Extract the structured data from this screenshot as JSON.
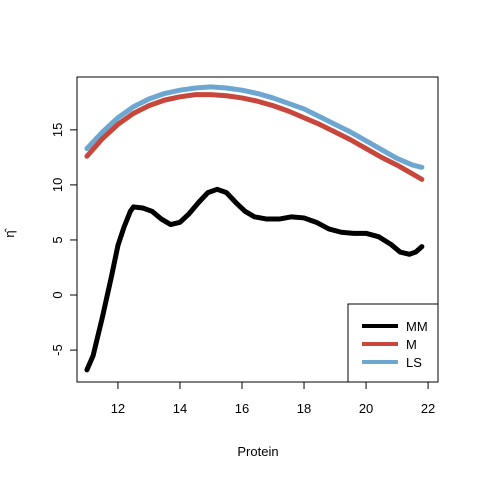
{
  "chart_data": {
    "type": "line",
    "title": "",
    "xlabel": "Protein",
    "ylabel": "η̂",
    "xlim": [
      10.68,
      22.32
    ],
    "ylim": [
      -7.9,
      19.8
    ],
    "xticks": [
      "12",
      "14",
      "16",
      "18",
      "20",
      "22"
    ],
    "yticks": [
      "-5",
      "0",
      "5",
      "10",
      "15"
    ],
    "grid": false,
    "legend_position": "bottom-right",
    "series": [
      {
        "name": "MM",
        "color": "#000000",
        "points": [
          [
            11.0,
            -6.8
          ],
          [
            11.2,
            -5.5
          ],
          [
            11.5,
            -2.0
          ],
          [
            11.8,
            1.8
          ],
          [
            12.0,
            4.5
          ],
          [
            12.2,
            6.2
          ],
          [
            12.4,
            7.6
          ],
          [
            12.5,
            8.0
          ],
          [
            12.8,
            7.9
          ],
          [
            13.1,
            7.6
          ],
          [
            13.4,
            6.9
          ],
          [
            13.7,
            6.4
          ],
          [
            14.0,
            6.6
          ],
          [
            14.3,
            7.4
          ],
          [
            14.6,
            8.4
          ],
          [
            14.9,
            9.3
          ],
          [
            15.2,
            9.6
          ],
          [
            15.5,
            9.3
          ],
          [
            15.8,
            8.4
          ],
          [
            16.1,
            7.6
          ],
          [
            16.4,
            7.1
          ],
          [
            16.8,
            6.9
          ],
          [
            17.2,
            6.9
          ],
          [
            17.6,
            7.1
          ],
          [
            18.0,
            7.0
          ],
          [
            18.4,
            6.6
          ],
          [
            18.8,
            6.0
          ],
          [
            19.2,
            5.7
          ],
          [
            19.6,
            5.6
          ],
          [
            20.0,
            5.6
          ],
          [
            20.4,
            5.3
          ],
          [
            20.8,
            4.6
          ],
          [
            21.1,
            3.9
          ],
          [
            21.4,
            3.7
          ],
          [
            21.6,
            3.9
          ],
          [
            21.8,
            4.4
          ]
        ]
      },
      {
        "name": "M",
        "color": "#c8473d",
        "points": [
          [
            11.0,
            12.6
          ],
          [
            11.5,
            14.2
          ],
          [
            12.0,
            15.5
          ],
          [
            12.5,
            16.5
          ],
          [
            13.0,
            17.2
          ],
          [
            13.5,
            17.7
          ],
          [
            14.0,
            18.0
          ],
          [
            14.5,
            18.2
          ],
          [
            15.0,
            18.2
          ],
          [
            15.5,
            18.1
          ],
          [
            16.0,
            17.9
          ],
          [
            16.5,
            17.6
          ],
          [
            17.0,
            17.2
          ],
          [
            17.5,
            16.7
          ],
          [
            18.0,
            16.1
          ],
          [
            18.5,
            15.5
          ],
          [
            19.0,
            14.8
          ],
          [
            19.5,
            14.1
          ],
          [
            20.0,
            13.3
          ],
          [
            20.5,
            12.5
          ],
          [
            21.0,
            11.8
          ],
          [
            21.5,
            11.0
          ],
          [
            21.8,
            10.5
          ]
        ]
      },
      {
        "name": "LS",
        "color": "#6ca6d1",
        "points": [
          [
            11.0,
            13.3
          ],
          [
            11.5,
            14.8
          ],
          [
            12.0,
            16.1
          ],
          [
            12.5,
            17.1
          ],
          [
            13.0,
            17.8
          ],
          [
            13.5,
            18.3
          ],
          [
            14.0,
            18.6
          ],
          [
            14.5,
            18.8
          ],
          [
            15.0,
            18.9
          ],
          [
            15.5,
            18.8
          ],
          [
            16.0,
            18.6
          ],
          [
            16.5,
            18.3
          ],
          [
            17.0,
            17.9
          ],
          [
            17.5,
            17.4
          ],
          [
            18.0,
            16.9
          ],
          [
            18.5,
            16.2
          ],
          [
            19.0,
            15.5
          ],
          [
            19.5,
            14.8
          ],
          [
            20.0,
            14.0
          ],
          [
            20.5,
            13.2
          ],
          [
            21.0,
            12.4
          ],
          [
            21.5,
            11.8
          ],
          [
            21.8,
            11.6
          ]
        ]
      }
    ]
  }
}
